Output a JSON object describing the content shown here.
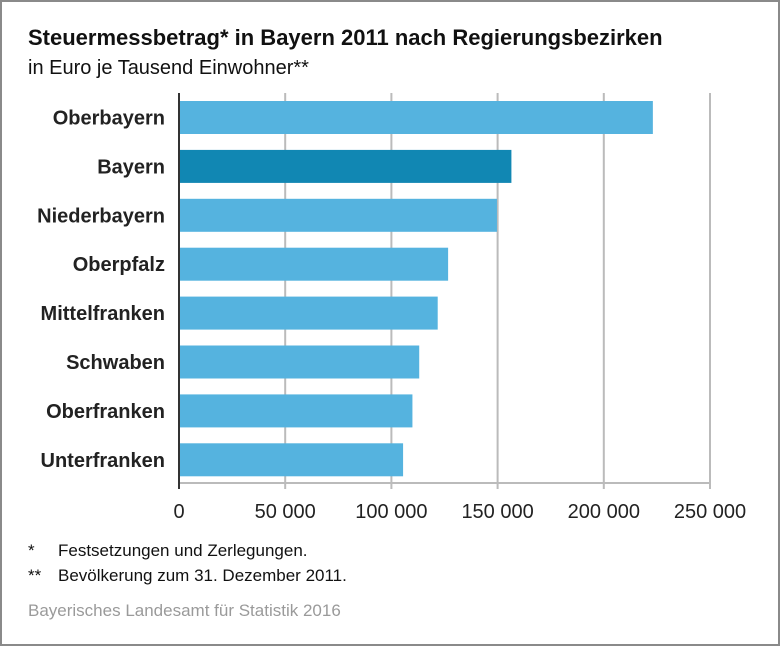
{
  "chart_data": {
    "type": "bar",
    "orientation": "horizontal",
    "title": "Steuermessbetrag* in Bayern 2011 nach Regierungsbezirken",
    "subtitle": "in Euro je Tausend Einwohner**",
    "categories": [
      "Oberbayern",
      "Bayern",
      "Niederbayern",
      "Oberpfalz",
      "Mittelfranken",
      "Schwaben",
      "Oberfranken",
      "Unterfranken"
    ],
    "values": [
      223100,
      156500,
      149700,
      126700,
      121800,
      113100,
      109900,
      105500
    ],
    "highlight": "Bayern",
    "xlim": [
      0,
      250000
    ],
    "xticks": [
      0,
      50000,
      100000,
      150000,
      200000,
      250000
    ],
    "xtick_labels": [
      "0",
      "50 000",
      "100 000",
      "150 000",
      "200 000",
      "250 000"
    ],
    "grid": true,
    "xlabel": "",
    "ylabel": ""
  },
  "colors": {
    "bar": "#55b3df",
    "highlight": "#1187b3",
    "grid": "#bbbbbb"
  },
  "footnotes": [
    {
      "mark": "*",
      "text": "Festsetzungen und Zerlegungen."
    },
    {
      "mark": "**",
      "text": "Bevölkerung zum 31. Dezember 2011."
    }
  ],
  "source": "Bayerisches Landesamt für Statistik 2016"
}
